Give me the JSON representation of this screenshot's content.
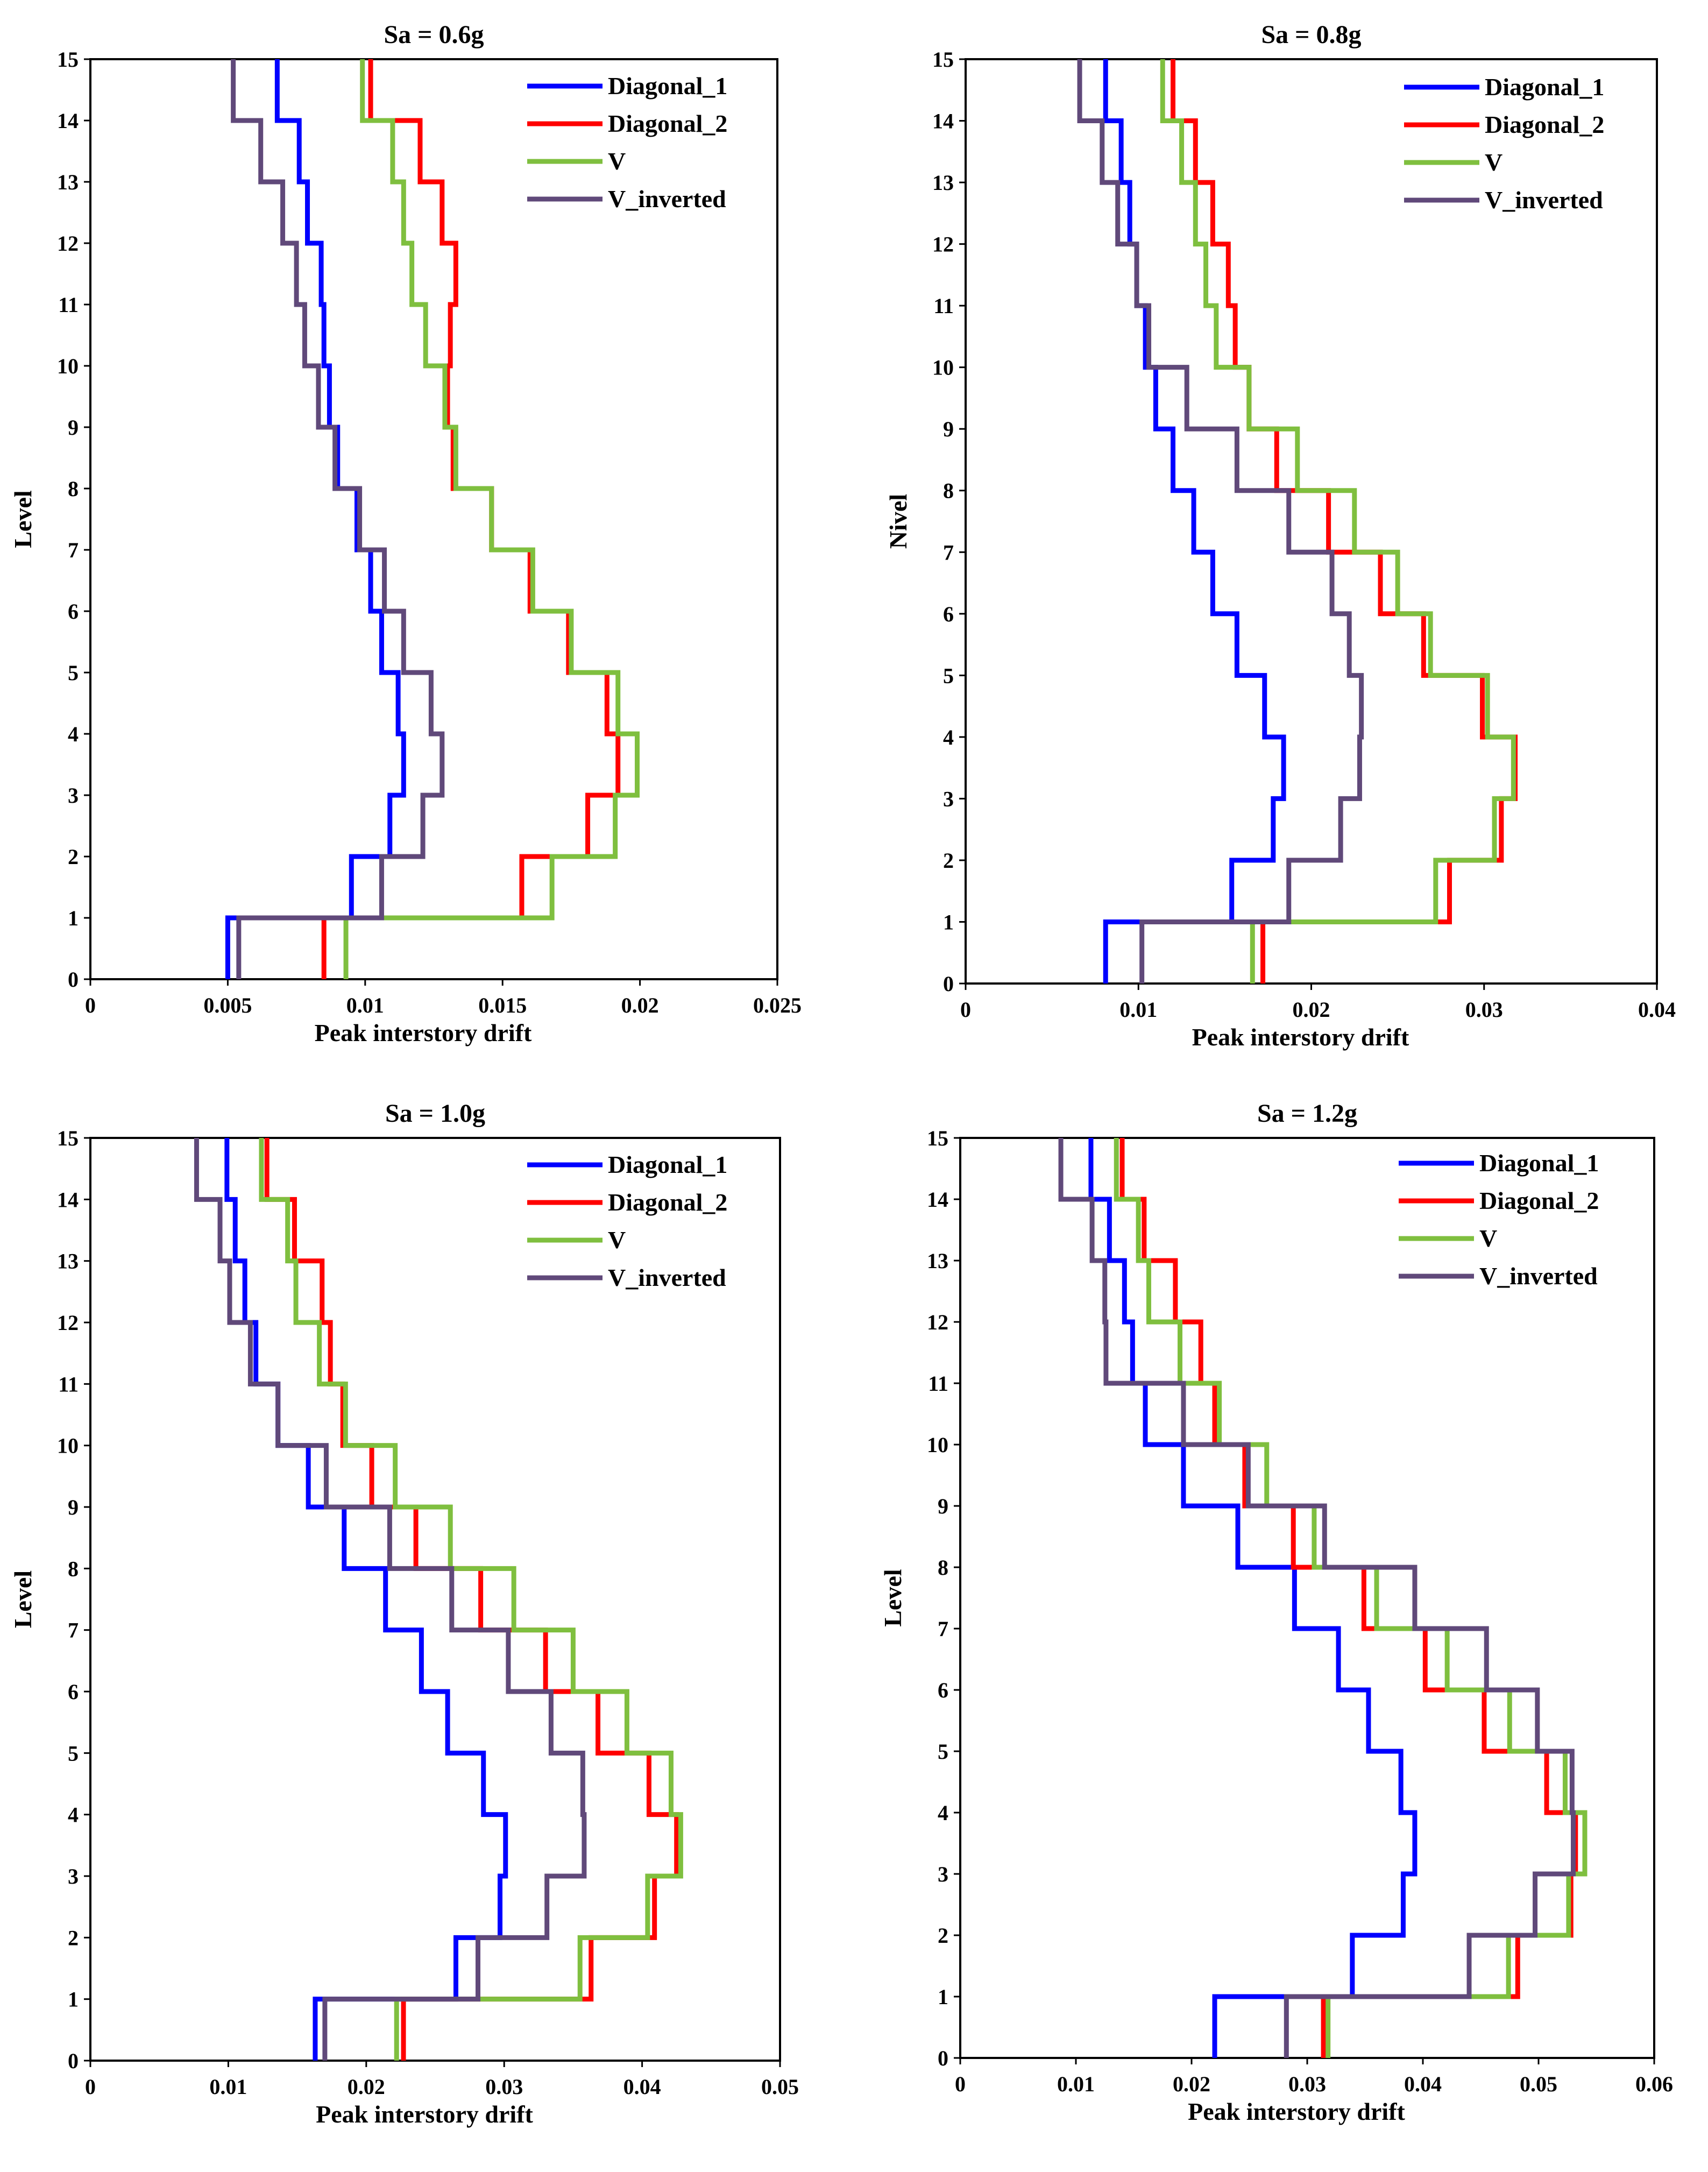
{
  "figure": {
    "panel_count": 4
  },
  "chart_data": [
    {
      "type": "line",
      "title": "Sa = 0.6g",
      "xlabel": "Peak interstory drift",
      "ylabel": "Level",
      "xlim": [
        0,
        0.025
      ],
      "ylim": [
        0,
        15
      ],
      "x_ticks": [
        0,
        0.005,
        0.01,
        0.015,
        0.02,
        0.025
      ],
      "x_tick_labels": [
        "0",
        "0.005",
        "0.01",
        "0.015",
        "0.02",
        "0.025"
      ],
      "y_ticks": [
        0,
        1,
        2,
        3,
        4,
        5,
        6,
        7,
        8,
        9,
        10,
        11,
        12,
        13,
        14,
        15
      ],
      "legend_position": "top-right",
      "series": [
        {
          "name": "Diagonal_1",
          "color": "#0000FF",
          "values": [
            0.005,
            0.0095,
            0.0109,
            0.0114,
            0.0112,
            0.0106,
            0.0102,
            0.0097,
            0.009,
            0.0087,
            0.0085,
            0.0084,
            0.0079,
            0.0076,
            0.0068
          ]
        },
        {
          "name": "Diagonal_2",
          "color": "#FF0000",
          "values": [
            0.0085,
            0.0157,
            0.0181,
            0.0192,
            0.0188,
            0.0174,
            0.016,
            0.0146,
            0.0132,
            0.013,
            0.0131,
            0.0133,
            0.0128,
            0.012,
            0.0102
          ]
        },
        {
          "name": "V",
          "color": "#7FBF3F",
          "values": [
            0.0093,
            0.0168,
            0.0191,
            0.0199,
            0.0192,
            0.0175,
            0.0161,
            0.0146,
            0.0133,
            0.0129,
            0.0122,
            0.0117,
            0.0114,
            0.011,
            0.0099
          ]
        },
        {
          "name": "V_inverted",
          "color": "#60497A",
          "values": [
            0.0054,
            0.0106,
            0.0121,
            0.0128,
            0.0124,
            0.0114,
            0.0107,
            0.0098,
            0.0089,
            0.0083,
            0.0078,
            0.0075,
            0.007,
            0.0062,
            0.0052
          ]
        }
      ]
    },
    {
      "type": "line",
      "title": "Sa = 0.8g",
      "xlabel": "Peak interstory drift",
      "ylabel": "Nivel",
      "xlim": [
        0,
        0.04
      ],
      "ylim": [
        0,
        15
      ],
      "x_ticks": [
        0,
        0.01,
        0.02,
        0.03,
        0.04
      ],
      "x_tick_labels": [
        "0",
        "0.01",
        "0.02",
        "0.03",
        "0.04"
      ],
      "y_ticks": [
        0,
        1,
        2,
        3,
        4,
        5,
        6,
        7,
        8,
        9,
        10,
        11,
        12,
        13,
        14,
        15
      ],
      "legend_position": "top-right",
      "series": [
        {
          "name": "Diagonal_1",
          "color": "#0000FF",
          "values": [
            0.0081,
            0.0154,
            0.0178,
            0.0184,
            0.0173,
            0.0157,
            0.0143,
            0.0132,
            0.012,
            0.011,
            0.0104,
            0.0099,
            0.0095,
            0.009,
            0.0081
          ]
        },
        {
          "name": "Diagonal_2",
          "color": "#FF0000",
          "values": [
            0.0172,
            0.028,
            0.031,
            0.0318,
            0.0299,
            0.0265,
            0.024,
            0.021,
            0.018,
            0.0164,
            0.0156,
            0.0152,
            0.0143,
            0.0133,
            0.012
          ]
        },
        {
          "name": "V",
          "color": "#7FBF3F",
          "values": [
            0.0166,
            0.0272,
            0.0306,
            0.0317,
            0.0302,
            0.0269,
            0.025,
            0.0225,
            0.0192,
            0.0164,
            0.0145,
            0.0139,
            0.0133,
            0.0125,
            0.0114
          ]
        },
        {
          "name": "V_inverted",
          "color": "#60497A",
          "values": [
            0.0102,
            0.0187,
            0.0217,
            0.0228,
            0.0229,
            0.0222,
            0.0212,
            0.0187,
            0.0157,
            0.0128,
            0.0106,
            0.0099,
            0.0088,
            0.0079,
            0.0066
          ]
        }
      ]
    },
    {
      "type": "line",
      "title": "Sa = 1.0g",
      "xlabel": "Peak interstory drift",
      "ylabel": "Level",
      "xlim": [
        0,
        0.05
      ],
      "ylim": [
        0,
        15
      ],
      "x_ticks": [
        0,
        0.01,
        0.02,
        0.03,
        0.04,
        0.05
      ],
      "x_tick_labels": [
        "0",
        "0.01",
        "0.02",
        "0.03",
        "0.04",
        "0.05"
      ],
      "y_ticks": [
        0,
        1,
        2,
        3,
        4,
        5,
        6,
        7,
        8,
        9,
        10,
        11,
        12,
        13,
        14,
        15
      ],
      "legend_position": "top-right",
      "series": [
        {
          "name": "Diagonal_1",
          "color": "#0000FF",
          "values": [
            0.0163,
            0.0265,
            0.0297,
            0.0301,
            0.0285,
            0.0259,
            0.024,
            0.0214,
            0.0184,
            0.0158,
            0.0136,
            0.012,
            0.0112,
            0.0105,
            0.0099
          ]
        },
        {
          "name": "Diagonal_2",
          "color": "#FF0000",
          "values": [
            0.0227,
            0.0363,
            0.0409,
            0.0425,
            0.0405,
            0.0368,
            0.033,
            0.0283,
            0.0236,
            0.0204,
            0.0183,
            0.0174,
            0.0168,
            0.0148,
            0.0128
          ]
        },
        {
          "name": "V",
          "color": "#7FBF3F",
          "values": [
            0.0222,
            0.0355,
            0.0404,
            0.0428,
            0.0421,
            0.0389,
            0.035,
            0.0307,
            0.0261,
            0.0221,
            0.0185,
            0.0166,
            0.0149,
            0.0143,
            0.0124
          ]
        },
        {
          "name": "V_inverted",
          "color": "#60497A",
          "values": [
            0.017,
            0.0281,
            0.0331,
            0.0358,
            0.0357,
            0.0334,
            0.0303,
            0.0262,
            0.0217,
            0.0171,
            0.0136,
            0.0116,
            0.0101,
            0.0094,
            0.0077
          ]
        }
      ]
    },
    {
      "type": "line",
      "title": "Sa = 1.2g",
      "xlabel": "Peak interstory drift",
      "ylabel": "Level",
      "xlim": [
        0,
        0.06
      ],
      "ylim": [
        0,
        15
      ],
      "x_ticks": [
        0,
        0.01,
        0.02,
        0.03,
        0.04,
        0.05,
        0.06
      ],
      "x_tick_labels": [
        "0",
        "0.01",
        "0.02",
        "0.03",
        "0.04",
        "0.05",
        "0.06"
      ],
      "y_ticks": [
        0,
        1,
        2,
        3,
        4,
        5,
        6,
        7,
        8,
        9,
        10,
        11,
        12,
        13,
        14,
        15
      ],
      "legend_position": "top-right",
      "series": [
        {
          "name": "Diagonal_1",
          "color": "#0000FF",
          "values": [
            0.022,
            0.0339,
            0.0383,
            0.0393,
            0.0381,
            0.0353,
            0.0327,
            0.0289,
            0.024,
            0.0193,
            0.016,
            0.0149,
            0.0142,
            0.0129,
            0.0113
          ]
        },
        {
          "name": "Diagonal_2",
          "color": "#FF0000",
          "values": [
            0.0314,
            0.0482,
            0.0528,
            0.0532,
            0.0507,
            0.0453,
            0.0402,
            0.0349,
            0.0288,
            0.0246,
            0.022,
            0.0208,
            0.0186,
            0.0159,
            0.014
          ]
        },
        {
          "name": "V",
          "color": "#7FBF3F",
          "values": [
            0.0318,
            0.0474,
            0.0526,
            0.054,
            0.0523,
            0.0475,
            0.0421,
            0.036,
            0.0306,
            0.0265,
            0.0224,
            0.019,
            0.0163,
            0.0154,
            0.0135
          ]
        },
        {
          "name": "V_inverted",
          "color": "#60497A",
          "values": [
            0.0282,
            0.044,
            0.0497,
            0.053,
            0.0529,
            0.0499,
            0.0455,
            0.0393,
            0.0315,
            0.0249,
            0.0193,
            0.0126,
            0.0125,
            0.0114,
            0.0087
          ]
        }
      ]
    }
  ]
}
